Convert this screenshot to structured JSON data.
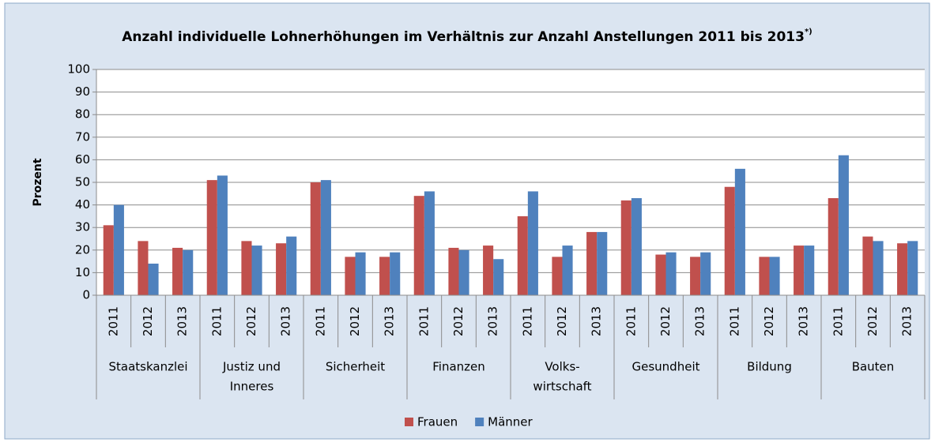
{
  "chart_data": {
    "type": "bar",
    "title": "Anzahl individuelle Lohnerhöhungen im Verhältnis zur Anzahl Anstellungen 2011 bis 2013",
    "title_note": "*)",
    "y_label": "Prozent",
    "categories": [
      "2011",
      "2012",
      "2013",
      "2011",
      "2012",
      "2013",
      "2011",
      "2012",
      "2013",
      "2011",
      "2012",
      "2013",
      "2011",
      "2012",
      "2013",
      "2011",
      "2012",
      "2013",
      "2011",
      "2012",
      "2013",
      "2011",
      "2012",
      "2013"
    ],
    "groups": [
      [
        "Staatskanzlei"
      ],
      [
        "Justiz und",
        "Inneres"
      ],
      [
        "Sicherheit"
      ],
      [
        "Finanzen"
      ],
      [
        "Volks-",
        "wirtschaft"
      ],
      [
        "Gesundheit"
      ],
      [
        "Bildung"
      ],
      [
        "Bauten"
      ]
    ],
    "series": [
      {
        "name": "Frauen",
        "color": "#c0504d",
        "values": [
          31,
          24,
          21,
          51,
          24,
          23,
          50,
          17,
          17,
          44,
          21,
          22,
          35,
          17,
          28,
          42,
          18,
          17,
          48,
          17,
          22,
          43,
          26,
          23
        ]
      },
      {
        "name": "Männer",
        "color": "#4f81bd",
        "values": [
          40,
          14,
          20,
          53,
          22,
          26,
          51,
          19,
          19,
          46,
          20,
          16,
          46,
          22,
          28,
          43,
          19,
          19,
          56,
          17,
          22,
          62,
          24,
          24
        ]
      }
    ],
    "ylim": [
      0,
      100
    ],
    "yticks": [
      0,
      10,
      20,
      30,
      40,
      50,
      60,
      70,
      80,
      90,
      100
    ],
    "grid": true,
    "legend": "bottom"
  }
}
